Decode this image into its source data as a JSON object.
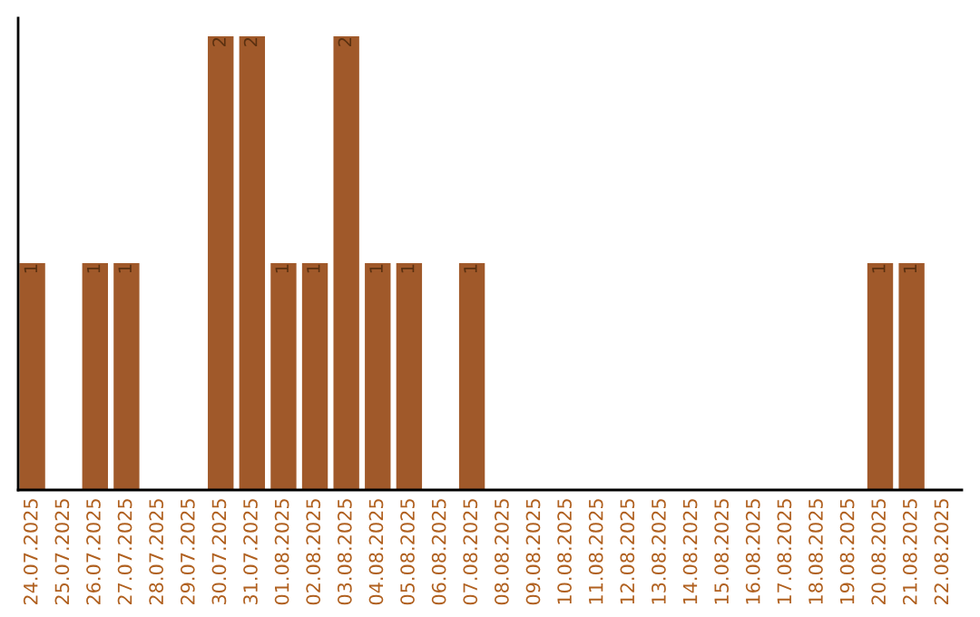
{
  "chart_data": {
    "type": "bar",
    "categories": [
      "24.07.2025",
      "25.07.2025",
      "26.07.2025",
      "27.07.2025",
      "28.07.2025",
      "29.07.2025",
      "30.07.2025",
      "31.07.2025",
      "01.08.2025",
      "02.08.2025",
      "03.08.2025",
      "04.08.2025",
      "05.08.2025",
      "06.08.2025",
      "07.08.2025",
      "08.08.2025",
      "09.08.2025",
      "10.08.2025",
      "11.08.2025",
      "12.08.2025",
      "13.08.2025",
      "14.08.2025",
      "15.08.2025",
      "16.08.2025",
      "17.08.2025",
      "18.08.2025",
      "19.08.2025",
      "20.08.2025",
      "21.08.2025",
      "22.08.2025"
    ],
    "values": [
      1,
      0,
      1,
      1,
      0,
      0,
      2,
      2,
      1,
      1,
      2,
      1,
      1,
      0,
      1,
      0,
      0,
      0,
      0,
      0,
      0,
      0,
      0,
      0,
      0,
      0,
      0,
      1,
      1,
      0
    ],
    "value_labels": [
      "1",
      null,
      "1",
      "1",
      null,
      null,
      "2",
      "2",
      "1",
      "1",
      "2",
      "1",
      "1",
      null,
      "1",
      null,
      null,
      null,
      null,
      null,
      null,
      null,
      null,
      null,
      null,
      null,
      null,
      "1",
      "1",
      null
    ],
    "color": "#a0592a",
    "grid": false,
    "legend": false
  }
}
